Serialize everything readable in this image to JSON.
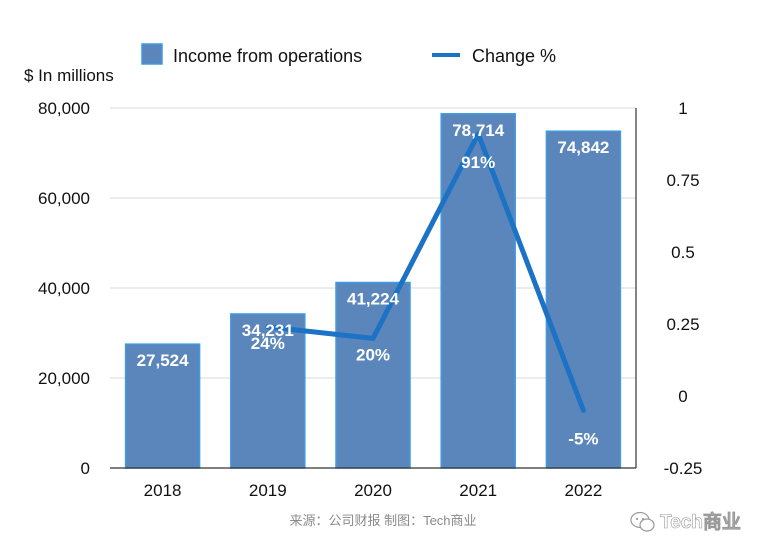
{
  "chart_data": {
    "type": "bar",
    "categories": [
      "2018",
      "2019",
      "2020",
      "2021",
      "2022"
    ],
    "series": [
      {
        "name": "Income from operations",
        "type": "bar",
        "axis": "left",
        "values": [
          27524,
          34231,
          41224,
          78714,
          74842
        ],
        "labels": [
          "27,524",
          "34,231",
          "41,224",
          "78,714",
          "74,842"
        ],
        "color": "#5b86bb",
        "edge_color": "#3f9be0"
      },
      {
        "name": "Change %",
        "type": "line",
        "axis": "right",
        "values": [
          null,
          0.24,
          0.2,
          0.91,
          -0.05
        ],
        "labels": [
          "",
          "24%",
          "20%",
          "91%",
          "-5%"
        ],
        "color": "#1c72c4"
      }
    ],
    "ylabel": "$ In millions",
    "ylim": [
      0,
      80000
    ],
    "yticks": [
      0,
      20000,
      40000,
      60000,
      80000
    ],
    "ytick_labels": [
      "0",
      "20,000",
      "40,000",
      "60,000",
      "80,000"
    ],
    "y2lim": [
      -0.25,
      1
    ],
    "y2ticks": [
      -0.25,
      0,
      0.25,
      0.5,
      0.75,
      1
    ],
    "y2tick_labels": [
      "-0.25",
      "0",
      "0.25",
      "0.5",
      "0.75",
      "1"
    ],
    "grid": true,
    "legend": "top-center"
  },
  "source": "来源：公司财报 制图：Tech商业",
  "watermark": "Tech商业"
}
